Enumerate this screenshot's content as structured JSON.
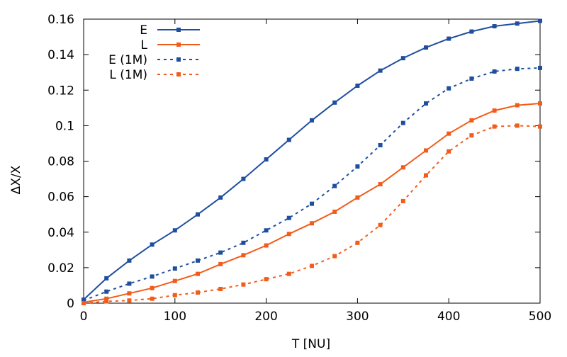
{
  "chart_data": {
    "type": "line",
    "title": "",
    "xlabel": "T [NU]",
    "ylabel": "ΔX/X",
    "xlim": [
      0,
      500
    ],
    "ylim": [
      0,
      0.16
    ],
    "x_ticks": [
      0,
      100,
      200,
      300,
      400,
      500
    ],
    "x_tick_labels": [
      "0",
      "100",
      "200",
      "300",
      "400",
      "500"
    ],
    "y_ticks": [
      0,
      0.02,
      0.04,
      0.06,
      0.08,
      0.1,
      0.12,
      0.14,
      0.16
    ],
    "y_tick_labels": [
      "0",
      "0.02",
      "0.04",
      "0.06",
      "0.08",
      "0.1",
      "0.12",
      "0.14",
      "0.16"
    ],
    "grid": false,
    "legend_position": "top-left",
    "x": [
      0,
      25,
      50,
      75,
      100,
      125,
      150,
      175,
      200,
      225,
      250,
      275,
      300,
      325,
      350,
      375,
      400,
      425,
      450,
      475,
      500
    ],
    "series": [
      {
        "name": "E",
        "color": "#1f4e9f",
        "dash": "solid",
        "values": [
          0.002,
          0.014,
          0.024,
          0.033,
          0.041,
          0.05,
          0.0595,
          0.07,
          0.081,
          0.092,
          0.103,
          0.113,
          0.1225,
          0.131,
          0.138,
          0.144,
          0.149,
          0.153,
          0.156,
          0.1575,
          0.159
        ]
      },
      {
        "name": "L",
        "color": "#f25c1a",
        "dash": "solid",
        "values": [
          0.0005,
          0.0025,
          0.0055,
          0.0085,
          0.0125,
          0.0165,
          0.022,
          0.027,
          0.0325,
          0.039,
          0.045,
          0.0515,
          0.0595,
          0.067,
          0.0765,
          0.086,
          0.0955,
          0.103,
          0.1085,
          0.1115,
          0.1125
        ]
      },
      {
        "name": "E (1M)",
        "color": "#1f4e9f",
        "dash": "dashed",
        "values": [
          0.0015,
          0.0065,
          0.011,
          0.015,
          0.0195,
          0.024,
          0.0285,
          0.034,
          0.041,
          0.048,
          0.056,
          0.066,
          0.077,
          0.089,
          0.1015,
          0.1125,
          0.121,
          0.1265,
          0.1305,
          0.132,
          0.1325
        ]
      },
      {
        "name": "L (1M)",
        "color": "#f25c1a",
        "dash": "dashed",
        "values": [
          0.0,
          0.001,
          0.0015,
          0.0025,
          0.0045,
          0.006,
          0.008,
          0.0105,
          0.0135,
          0.0165,
          0.021,
          0.0265,
          0.034,
          0.044,
          0.0575,
          0.072,
          0.0855,
          0.0945,
          0.0995,
          0.1,
          0.0995
        ]
      }
    ]
  }
}
